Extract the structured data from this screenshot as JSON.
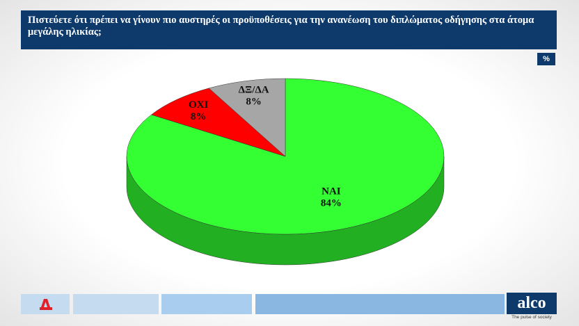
{
  "chart_data": {
    "type": "pie3d",
    "title": "Πιστεύετε ότι πρέπει να γίνουν πιο αυστηρές οι προϋποθέσεις για την ανανέωση του διπλώματος οδήγησης στα άτομα μεγάλης ηλικίας;",
    "unit_label": "%",
    "categories": [
      "ΝΑΙ",
      "ΟΧΙ",
      "ΔΞ/ΔΑ"
    ],
    "values": [
      84,
      8,
      8
    ],
    "value_labels": [
      "84%",
      "8%",
      "8%"
    ],
    "colors": [
      "#33ff33",
      "#ff0000",
      "#a6a6a6"
    ],
    "side_colors": [
      "#22b022",
      "#b00000",
      "#7a7a7a"
    ]
  },
  "brand": {
    "name": "alco",
    "tagline": "The pulse of society"
  }
}
